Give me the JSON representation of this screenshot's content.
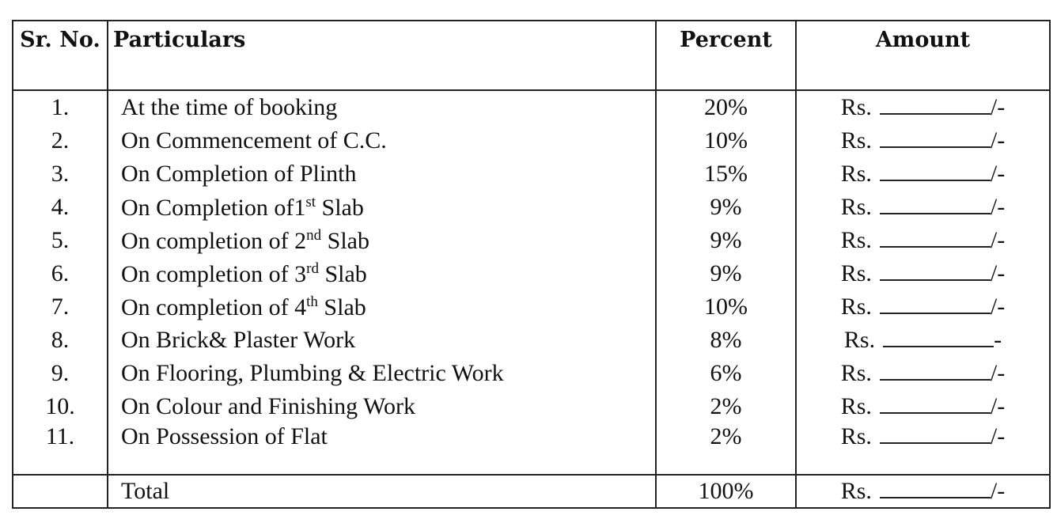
{
  "table": {
    "header": [
      "Sr. No.",
      "Particulars",
      "Percent",
      "Amount"
    ],
    "rows": [
      {
        "sr": "1.",
        "particulars": [
          {
            "text": "At the time of booking"
          }
        ],
        "percent": "20%",
        "amount": {
          "prefix": "Rs.",
          "suffix": "/-"
        }
      },
      {
        "sr": "2.",
        "particulars": [
          {
            "text": "On Commencement of C.C."
          }
        ],
        "percent": "10%",
        "amount": {
          "prefix": "Rs.",
          "suffix": "/-"
        }
      },
      {
        "sr": "3.",
        "particulars": [
          {
            "text": "On Completion of Plinth"
          }
        ],
        "percent": "15%",
        "amount": {
          "prefix": "Rs.",
          "suffix": "/-"
        }
      },
      {
        "sr": "4.",
        "particulars": [
          {
            "text": "On Completion of1"
          },
          {
            "sup": "st"
          },
          {
            "text": " Slab"
          }
        ],
        "percent": "9%",
        "amount": {
          "prefix": "Rs.",
          "suffix": "/-"
        }
      },
      {
        "sr": "5.",
        "particulars": [
          {
            "text": "On completion of 2"
          },
          {
            "sup": "nd"
          },
          {
            "text": " Slab"
          }
        ],
        "percent": "9%",
        "amount": {
          "prefix": "Rs.",
          "suffix": "/-"
        }
      },
      {
        "sr": "6.",
        "particulars": [
          {
            "text": "On completion of 3"
          },
          {
            "sup": "rd"
          },
          {
            "text": " Slab"
          }
        ],
        "percent": "9%",
        "amount": {
          "prefix": "Rs.",
          "suffix": "/-"
        }
      },
      {
        "sr": "7.",
        "particulars": [
          {
            "text": "On completion of 4"
          },
          {
            "sup": "th"
          },
          {
            "text": " Slab"
          }
        ],
        "percent": "10%",
        "amount": {
          "prefix": "Rs.",
          "suffix": "/-"
        }
      },
      {
        "sr": "8.",
        "particulars": [
          {
            "text": "On Brick& Plaster Work"
          }
        ],
        "percent": "8%",
        "amount": {
          "prefix": "Rs.",
          "suffix": "-"
        }
      },
      {
        "sr": "9.",
        "particulars": [
          {
            "text": "On Flooring, Plumbing & Electric Work"
          }
        ],
        "percent": "6%",
        "amount": {
          "prefix": "Rs.",
          "suffix": "/-"
        }
      },
      {
        "sr": "10.",
        "particulars": [
          {
            "text": "On Colour and Finishing Work"
          }
        ],
        "percent": "2%",
        "amount": {
          "prefix": "Rs.",
          "suffix": "/-"
        }
      },
      {
        "sr": "11.",
        "particulars": [
          {
            "text": "On Possession of Flat"
          }
        ],
        "percent": "2%",
        "amount": {
          "prefix": "Rs.",
          "suffix": "/-"
        }
      }
    ],
    "total": {
      "label": "Total",
      "percent": "100%",
      "amount": {
        "prefix": "Rs.",
        "suffix": "/-"
      }
    }
  }
}
